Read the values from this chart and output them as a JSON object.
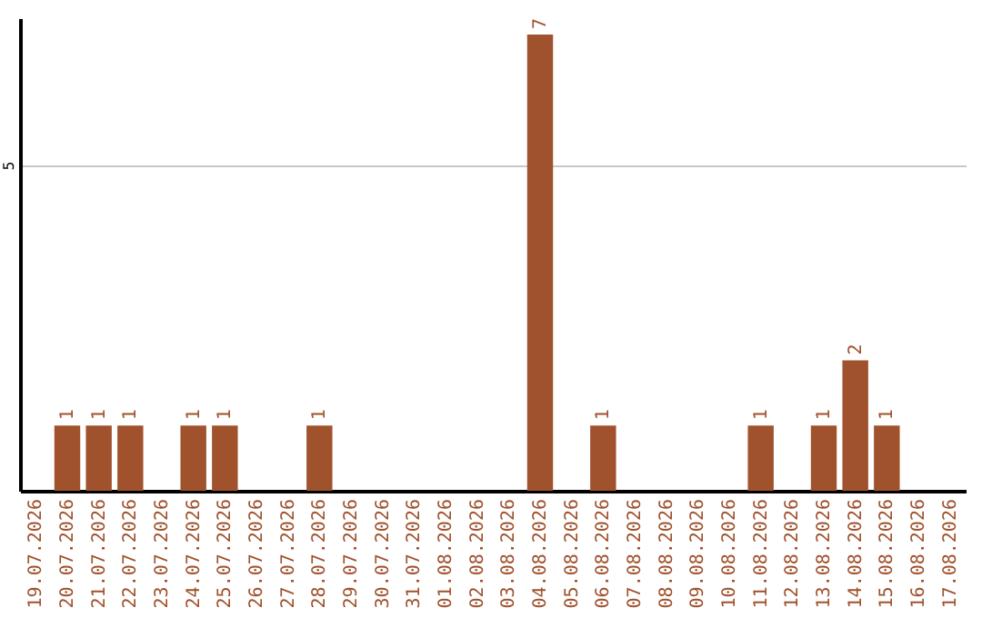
{
  "chart_data": {
    "type": "bar",
    "categories": [
      "19.07.2026",
      "20.07.2026",
      "21.07.2026",
      "22.07.2026",
      "23.07.2026",
      "24.07.2026",
      "25.07.2026",
      "26.07.2026",
      "27.07.2026",
      "28.07.2026",
      "29.07.2026",
      "30.07.2026",
      "31.07.2026",
      "01.08.2026",
      "02.08.2026",
      "03.08.2026",
      "04.08.2026",
      "05.08.2026",
      "06.08.2026",
      "07.08.2026",
      "08.08.2026",
      "09.08.2026",
      "10.08.2026",
      "11.08.2026",
      "12.08.2026",
      "13.08.2026",
      "14.08.2026",
      "15.08.2026",
      "16.08.2026",
      "17.08.2026"
    ],
    "values": [
      0,
      1,
      1,
      1,
      0,
      1,
      1,
      0,
      0,
      1,
      0,
      0,
      0,
      0,
      0,
      0,
      7,
      0,
      1,
      0,
      0,
      0,
      0,
      1,
      0,
      1,
      2,
      1,
      0,
      0
    ],
    "value_labels": [
      null,
      "1",
      "1",
      "1",
      null,
      "1",
      "1",
      null,
      null,
      "1",
      null,
      null,
      null,
      null,
      null,
      null,
      "7",
      null,
      "1",
      null,
      null,
      null,
      null,
      "1",
      null,
      "1",
      "2",
      "1",
      null,
      null
    ],
    "color": "#a0522d",
    "ylim": [
      0,
      7.25
    ],
    "yticks": [
      5
    ],
    "grid": "y"
  }
}
